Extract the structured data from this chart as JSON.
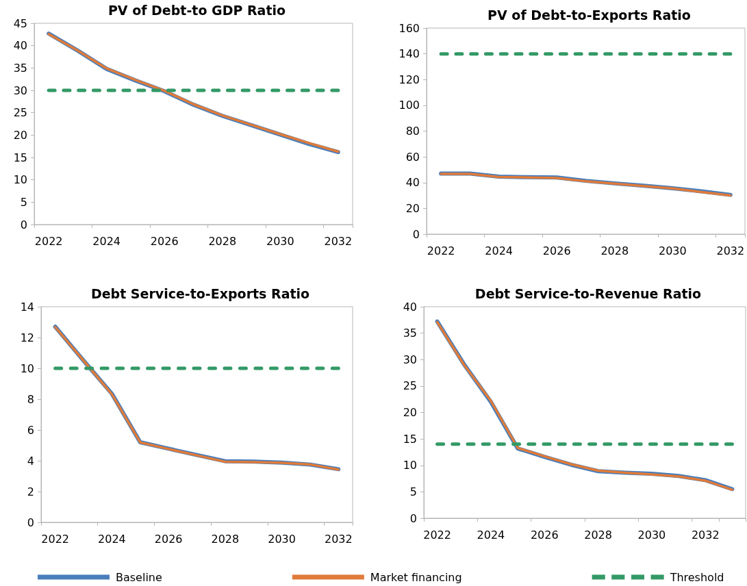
{
  "chart_data": [
    {
      "type": "line",
      "title": "PV of Debt-to GDP Ratio",
      "categories": [
        "2022",
        null,
        "2024",
        null,
        "2026",
        null,
        "2028",
        null,
        "2030",
        null,
        "2032"
      ],
      "grid": false,
      "marker": "none",
      "ylim": [
        0,
        45
      ],
      "yticks": [
        0,
        5,
        10,
        15,
        20,
        25,
        30,
        35,
        40,
        45
      ],
      "series": [
        {
          "color": "#4a7ebb",
          "values": [
            42.7,
            38.9,
            34.8,
            32.2,
            29.8,
            26.8,
            24.3,
            22.2,
            20.1,
            18.0,
            16.2
          ]
        },
        {
          "color": "#e07b39",
          "values": [
            42.6,
            38.9,
            34.9,
            32.3,
            29.9,
            26.9,
            24.4,
            22.3,
            20.2,
            18.2,
            16.3
          ]
        },
        {
          "color": "#339966",
          "line_style": "dashed",
          "values": [
            30,
            30,
            30,
            30,
            30,
            30,
            30,
            30,
            30,
            30,
            30
          ]
        }
      ]
    },
    {
      "type": "line",
      "title": "PV of Debt-to-Exports Ratio",
      "categories": [
        "2022",
        null,
        "2024",
        null,
        "2026",
        null,
        "2028",
        null,
        "2030",
        null,
        "2032"
      ],
      "grid": false,
      "marker": "none",
      "ylim": [
        0,
        160
      ],
      "yticks": [
        0,
        20,
        40,
        60,
        80,
        100,
        120,
        140,
        160
      ],
      "series": [
        {
          "color": "#4a7ebb",
          "values": [
            47,
            47,
            44.6,
            44.2,
            44,
            41.4,
            39.4,
            37.6,
            35.6,
            33.2,
            30.5
          ]
        },
        {
          "color": "#e07b39",
          "values": [
            46.8,
            46.8,
            44.4,
            44,
            43.6,
            41,
            39.2,
            37.3,
            35.5,
            32.7,
            30
          ]
        },
        {
          "color": "#339966",
          "line_style": "dashed",
          "values": [
            140,
            140,
            140,
            140,
            140,
            140,
            140,
            140,
            140,
            140,
            140
          ]
        }
      ]
    },
    {
      "type": "line",
      "title": "Debt Service-to-Exports Ratio",
      "categories": [
        "2022",
        null,
        "2024",
        null,
        "2026",
        null,
        "2028",
        null,
        "2030",
        null,
        "2032"
      ],
      "grid": false,
      "marker": "none",
      "ylim": [
        0,
        14
      ],
      "yticks": [
        0,
        2,
        4,
        6,
        8,
        10,
        12,
        14
      ],
      "series": [
        {
          "color": "#4a7ebb",
          "values": [
            12.7,
            10.5,
            8.35,
            5.2,
            4.78,
            4.37,
            3.97,
            3.94,
            3.88,
            3.75,
            3.45
          ]
        },
        {
          "color": "#e07b39",
          "values": [
            12.67,
            10.5,
            8.32,
            5.19,
            4.76,
            4.35,
            3.93,
            3.91,
            3.87,
            3.76,
            3.42
          ]
        },
        {
          "color": "#339966",
          "line_style": "dashed",
          "values": [
            10,
            10,
            10,
            10,
            10,
            10,
            10,
            10,
            10,
            10,
            10
          ]
        }
      ]
    },
    {
      "type": "line",
      "title": "Debt Service-to-Revenue Ratio",
      "categories": [
        "2022",
        null,
        "2024",
        null,
        "2026",
        null,
        "2028",
        null,
        "2030",
        null,
        "2032",
        null
      ],
      "grid": false,
      "marker": "none",
      "legend": "bottom",
      "ylim": [
        0,
        40
      ],
      "yticks": [
        0,
        5,
        10,
        15,
        20,
        25,
        30,
        35,
        40
      ],
      "series": [
        {
          "name": "Baseline",
          "color": "#4a7ebb",
          "values": [
            37.2,
            29.1,
            22,
            13.2,
            11.6,
            10.1,
            8.9,
            8.6,
            8.4,
            8.0,
            7.2,
            5.5
          ]
        },
        {
          "name": "Market financing",
          "color": "#e07b39",
          "values": [
            37.1,
            29.0,
            22.2,
            13.3,
            11.7,
            10.2,
            9.0,
            8.6,
            8.3,
            7.9,
            7.1,
            5.4
          ]
        },
        {
          "name": "Threshold",
          "color": "#339966",
          "line_style": "dashed",
          "values": [
            14,
            14,
            14,
            14,
            14,
            14,
            14,
            14,
            14,
            14,
            14,
            14
          ]
        }
      ]
    }
  ]
}
